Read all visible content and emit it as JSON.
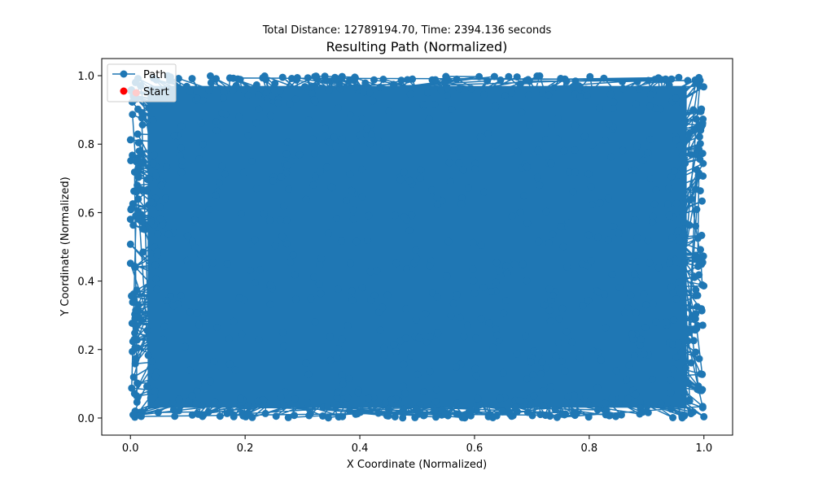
{
  "chart_data": {
    "type": "line",
    "suptitle": "Total Distance: 12789194.70, Time: 2394.136 seconds",
    "title": "Resulting Path (Normalized)",
    "xlabel": "X Coordinate (Normalized)",
    "ylabel": "Y Coordinate (Normalized)",
    "xlim": [
      -0.05,
      1.05
    ],
    "ylim": [
      -0.05,
      1.05
    ],
    "xticks": [
      "0.0",
      "0.2",
      "0.4",
      "0.6",
      "0.8",
      "1.0"
    ],
    "yticks": [
      "0.0",
      "0.2",
      "0.4",
      "0.6",
      "0.8",
      "1.0"
    ],
    "grid": false,
    "legend": {
      "placement": "upper-left",
      "entries": [
        {
          "label": "Path",
          "color": "#1f77b4",
          "marker": "circle-line"
        },
        {
          "label": "Start",
          "color": "#ff0000",
          "marker": "circle"
        }
      ]
    },
    "series": [
      {
        "name": "Path",
        "color": "#1f77b4",
        "marker": "o",
        "coverage": "dense random tour covering the full unit square [0,1]x[0,1]"
      }
    ],
    "start_point": {
      "x": 0.01,
      "y": 0.95
    }
  }
}
